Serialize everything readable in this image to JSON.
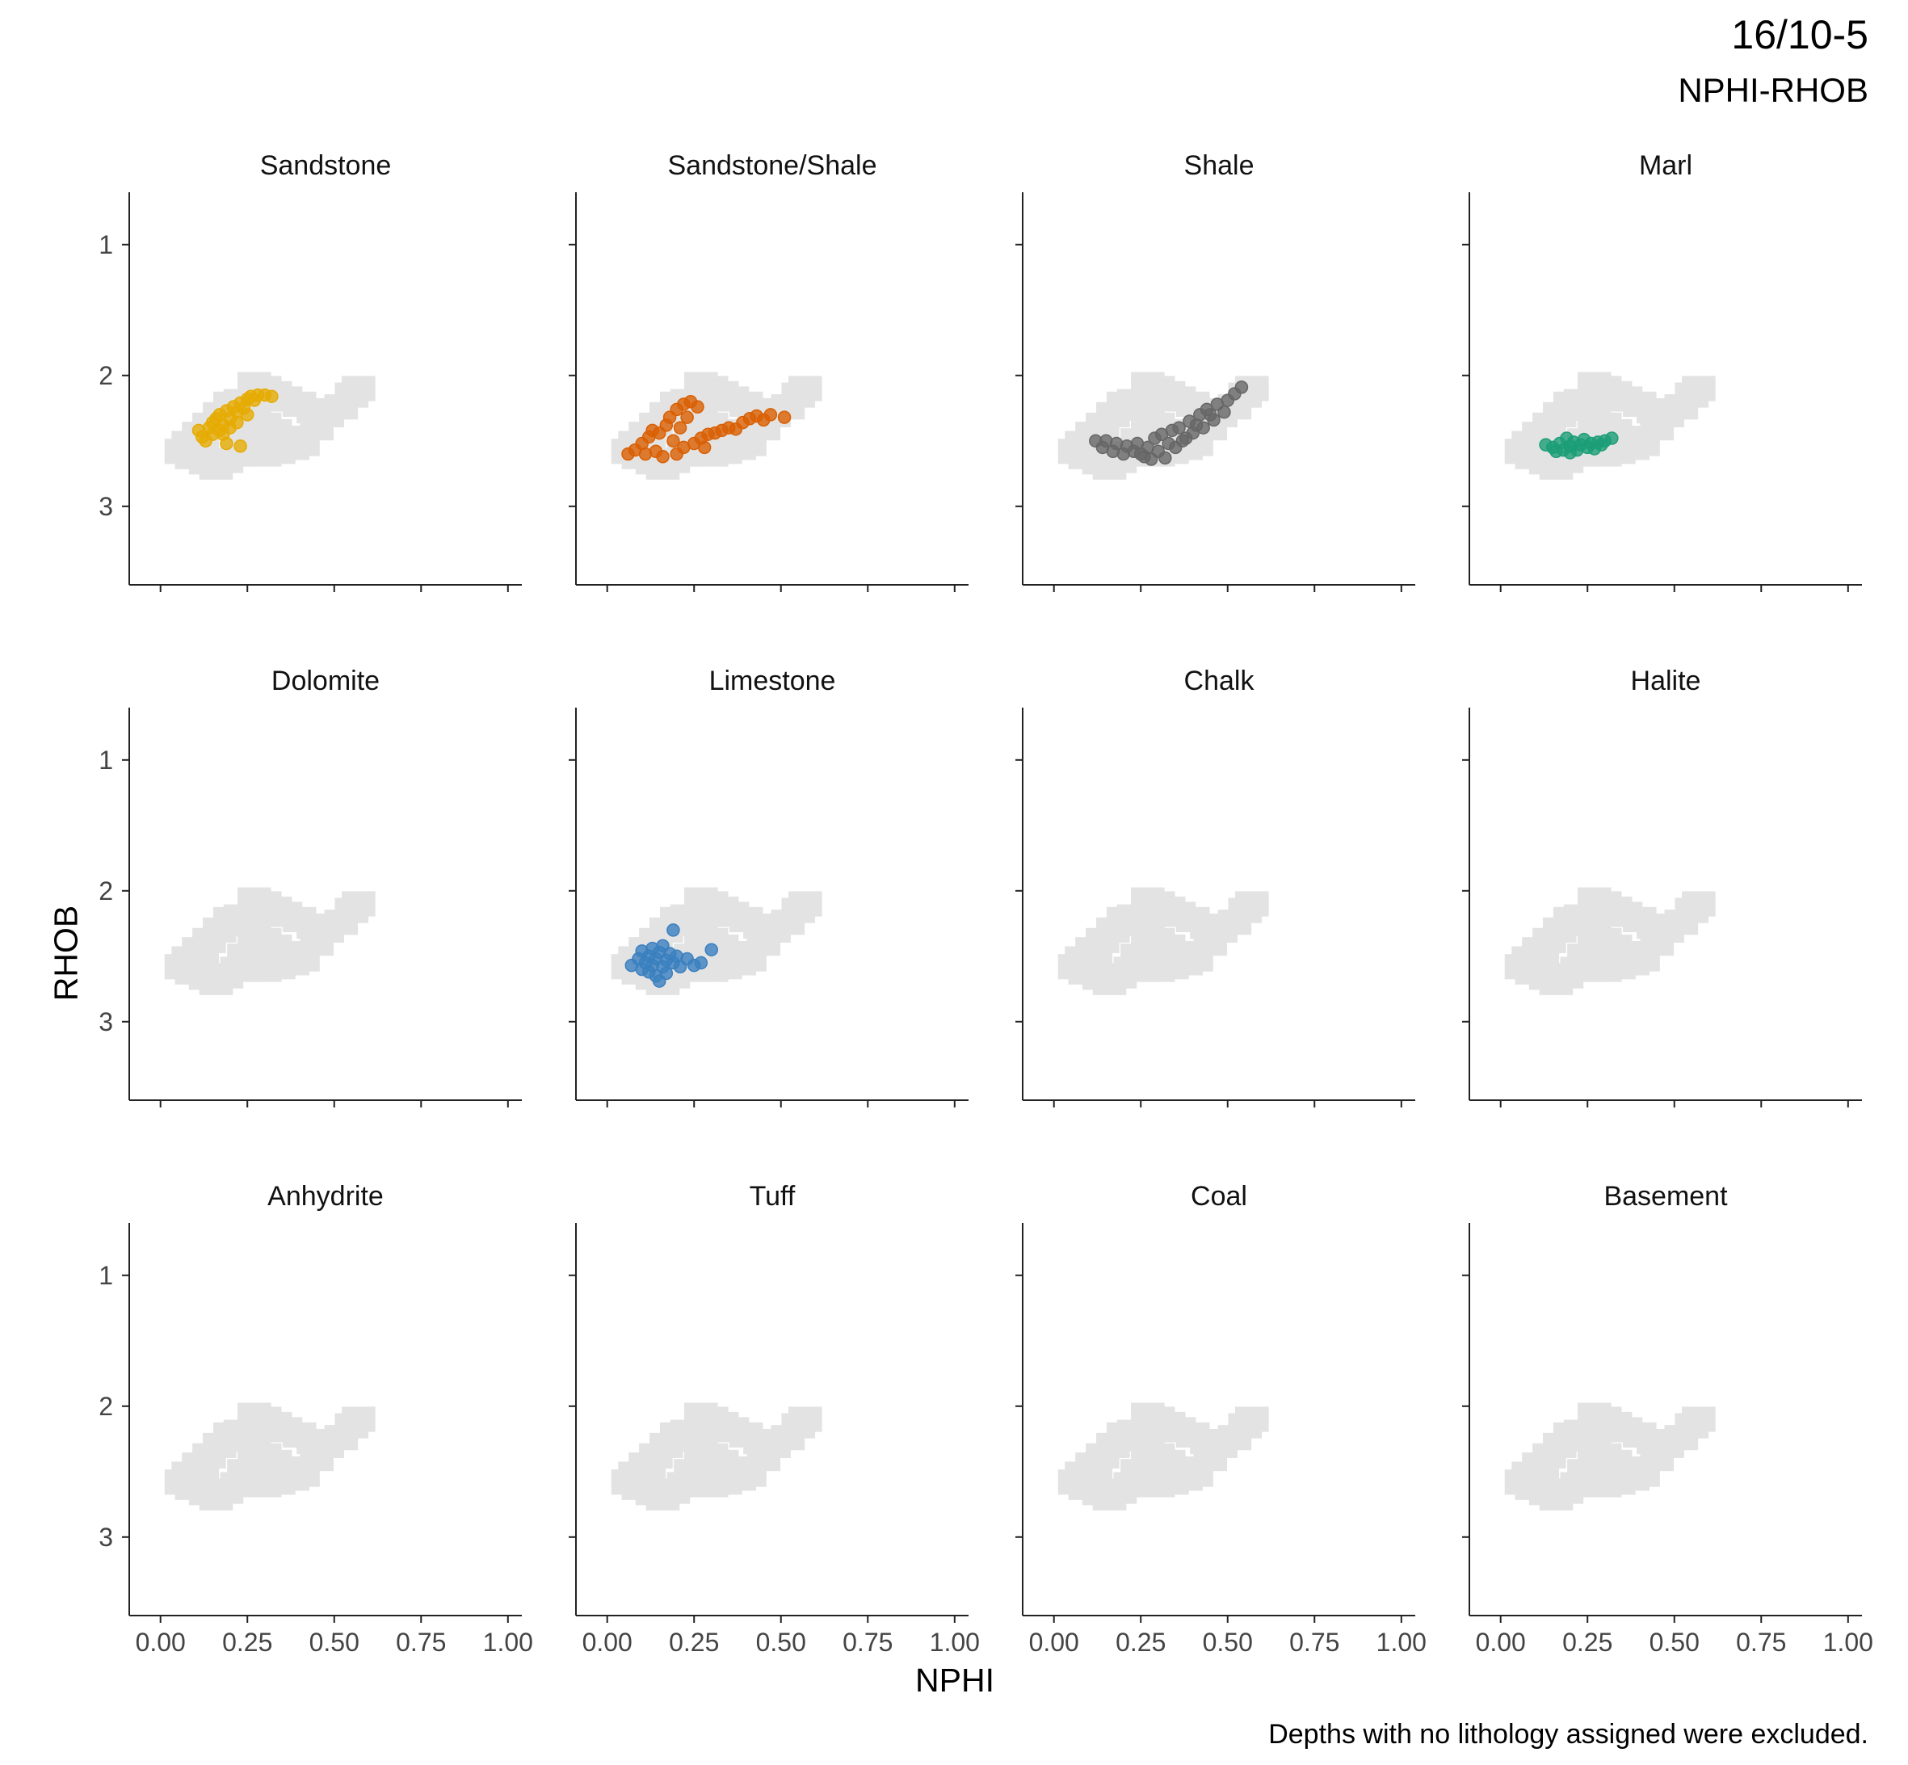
{
  "title": "16/10-5",
  "subtitle": "NPHI-RHOB",
  "caption": "Depths with no lithology assigned were excluded.",
  "chart_data": {
    "type": "scatter",
    "xlabel": "NPHI",
    "ylabel": "RHOB",
    "xlim": [
      -0.09,
      1.04
    ],
    "ylim": [
      3.6,
      0.6
    ],
    "y_reversed": true,
    "x_ticks": [
      "0.00",
      "0.25",
      "0.50",
      "0.75",
      "1.00"
    ],
    "y_ticks": [
      "1",
      "2",
      "3"
    ],
    "grid": false,
    "background_points_color": "#e3e3e3",
    "background_points": [
      {
        "x": 0.27,
        "y": 2.07
      },
      {
        "x": 0.3,
        "y": 2.1
      },
      {
        "x": 0.33,
        "y": 2.14
      },
      {
        "x": 0.36,
        "y": 2.18
      },
      {
        "x": 0.4,
        "y": 2.22
      },
      {
        "x": 0.44,
        "y": 2.27
      },
      {
        "x": 0.48,
        "y": 2.3
      },
      {
        "x": 0.52,
        "y": 2.24
      },
      {
        "x": 0.55,
        "y": 2.15
      },
      {
        "x": 0.57,
        "y": 2.1
      },
      {
        "x": 0.25,
        "y": 2.25
      },
      {
        "x": 0.27,
        "y": 2.32
      },
      {
        "x": 0.3,
        "y": 2.38
      },
      {
        "x": 0.33,
        "y": 2.43
      },
      {
        "x": 0.37,
        "y": 2.48
      },
      {
        "x": 0.41,
        "y": 2.52
      },
      {
        "x": 0.45,
        "y": 2.4
      },
      {
        "x": 0.2,
        "y": 2.22
      },
      {
        "x": 0.23,
        "y": 2.2
      },
      {
        "x": 0.17,
        "y": 2.3
      },
      {
        "x": 0.14,
        "y": 2.38
      },
      {
        "x": 0.11,
        "y": 2.45
      },
      {
        "x": 0.08,
        "y": 2.52
      },
      {
        "x": 0.06,
        "y": 2.58
      },
      {
        "x": 0.09,
        "y": 2.62
      },
      {
        "x": 0.13,
        "y": 2.66
      },
      {
        "x": 0.16,
        "y": 2.7
      },
      {
        "x": 0.19,
        "y": 2.65
      },
      {
        "x": 0.22,
        "y": 2.6
      },
      {
        "x": 0.26,
        "y": 2.58
      },
      {
        "x": 0.3,
        "y": 2.6
      },
      {
        "x": 0.34,
        "y": 2.58
      },
      {
        "x": 0.38,
        "y": 2.55
      },
      {
        "x": 0.28,
        "y": 2.45
      },
      {
        "x": 0.24,
        "y": 2.5
      },
      {
        "x": 0.12,
        "y": 2.56
      }
    ],
    "panels": [
      {
        "name": "Sandstone",
        "color": "#e6ab02",
        "points": [
          {
            "x": 0.11,
            "y": 2.42
          },
          {
            "x": 0.12,
            "y": 2.47
          },
          {
            "x": 0.14,
            "y": 2.4
          },
          {
            "x": 0.13,
            "y": 2.5
          },
          {
            "x": 0.15,
            "y": 2.36
          },
          {
            "x": 0.16,
            "y": 2.33
          },
          {
            "x": 0.15,
            "y": 2.45
          },
          {
            "x": 0.17,
            "y": 2.3
          },
          {
            "x": 0.18,
            "y": 2.38
          },
          {
            "x": 0.17,
            "y": 2.42
          },
          {
            "x": 0.19,
            "y": 2.27
          },
          {
            "x": 0.2,
            "y": 2.33
          },
          {
            "x": 0.21,
            "y": 2.24
          },
          {
            "x": 0.22,
            "y": 2.28
          },
          {
            "x": 0.23,
            "y": 2.21
          },
          {
            "x": 0.24,
            "y": 2.25
          },
          {
            "x": 0.25,
            "y": 2.18
          },
          {
            "x": 0.26,
            "y": 2.16
          },
          {
            "x": 0.27,
            "y": 2.19
          },
          {
            "x": 0.28,
            "y": 2.15
          },
          {
            "x": 0.3,
            "y": 2.15
          },
          {
            "x": 0.32,
            "y": 2.16
          },
          {
            "x": 0.18,
            "y": 2.45
          },
          {
            "x": 0.2,
            "y": 2.4
          },
          {
            "x": 0.22,
            "y": 2.36
          },
          {
            "x": 0.19,
            "y": 2.52
          },
          {
            "x": 0.23,
            "y": 2.54
          },
          {
            "x": 0.25,
            "y": 2.3
          }
        ]
      },
      {
        "name": "Sandstone/Shale",
        "color": "#d95f02",
        "points": [
          {
            "x": 0.06,
            "y": 2.6
          },
          {
            "x": 0.08,
            "y": 2.57
          },
          {
            "x": 0.1,
            "y": 2.52
          },
          {
            "x": 0.12,
            "y": 2.47
          },
          {
            "x": 0.13,
            "y": 2.42
          },
          {
            "x": 0.15,
            "y": 2.44
          },
          {
            "x": 0.14,
            "y": 2.58
          },
          {
            "x": 0.11,
            "y": 2.6
          },
          {
            "x": 0.17,
            "y": 2.38
          },
          {
            "x": 0.18,
            "y": 2.32
          },
          {
            "x": 0.2,
            "y": 2.26
          },
          {
            "x": 0.22,
            "y": 2.22
          },
          {
            "x": 0.24,
            "y": 2.2
          },
          {
            "x": 0.26,
            "y": 2.24
          },
          {
            "x": 0.23,
            "y": 2.32
          },
          {
            "x": 0.21,
            "y": 2.4
          },
          {
            "x": 0.19,
            "y": 2.5
          },
          {
            "x": 0.22,
            "y": 2.55
          },
          {
            "x": 0.25,
            "y": 2.52
          },
          {
            "x": 0.27,
            "y": 2.48
          },
          {
            "x": 0.29,
            "y": 2.45
          },
          {
            "x": 0.31,
            "y": 2.44
          },
          {
            "x": 0.33,
            "y": 2.42
          },
          {
            "x": 0.35,
            "y": 2.4
          },
          {
            "x": 0.37,
            "y": 2.41
          },
          {
            "x": 0.39,
            "y": 2.36
          },
          {
            "x": 0.41,
            "y": 2.33
          },
          {
            "x": 0.43,
            "y": 2.31
          },
          {
            "x": 0.45,
            "y": 2.34
          },
          {
            "x": 0.47,
            "y": 2.3
          },
          {
            "x": 0.51,
            "y": 2.32
          },
          {
            "x": 0.16,
            "y": 2.62
          },
          {
            "x": 0.2,
            "y": 2.6
          },
          {
            "x": 0.28,
            "y": 2.55
          }
        ]
      },
      {
        "name": "Shale",
        "color": "#666666",
        "points": [
          {
            "x": 0.12,
            "y": 2.5
          },
          {
            "x": 0.14,
            "y": 2.55
          },
          {
            "x": 0.15,
            "y": 2.5
          },
          {
            "x": 0.17,
            "y": 2.58
          },
          {
            "x": 0.18,
            "y": 2.52
          },
          {
            "x": 0.2,
            "y": 2.6
          },
          {
            "x": 0.21,
            "y": 2.54
          },
          {
            "x": 0.23,
            "y": 2.58
          },
          {
            "x": 0.24,
            "y": 2.52
          },
          {
            "x": 0.26,
            "y": 2.62
          },
          {
            "x": 0.27,
            "y": 2.55
          },
          {
            "x": 0.29,
            "y": 2.48
          },
          {
            "x": 0.3,
            "y": 2.58
          },
          {
            "x": 0.31,
            "y": 2.45
          },
          {
            "x": 0.33,
            "y": 2.52
          },
          {
            "x": 0.34,
            "y": 2.42
          },
          {
            "x": 0.35,
            "y": 2.55
          },
          {
            "x": 0.36,
            "y": 2.4
          },
          {
            "x": 0.38,
            "y": 2.48
          },
          {
            "x": 0.39,
            "y": 2.35
          },
          {
            "x": 0.4,
            "y": 2.44
          },
          {
            "x": 0.42,
            "y": 2.3
          },
          {
            "x": 0.43,
            "y": 2.4
          },
          {
            "x": 0.44,
            "y": 2.26
          },
          {
            "x": 0.46,
            "y": 2.34
          },
          {
            "x": 0.47,
            "y": 2.22
          },
          {
            "x": 0.49,
            "y": 2.28
          },
          {
            "x": 0.5,
            "y": 2.19
          },
          {
            "x": 0.52,
            "y": 2.14
          },
          {
            "x": 0.54,
            "y": 2.09
          },
          {
            "x": 0.32,
            "y": 2.63
          },
          {
            "x": 0.28,
            "y": 2.64
          },
          {
            "x": 0.25,
            "y": 2.6
          },
          {
            "x": 0.37,
            "y": 2.5
          },
          {
            "x": 0.41,
            "y": 2.38
          },
          {
            "x": 0.45,
            "y": 2.3
          }
        ]
      },
      {
        "name": "Marl",
        "color": "#1b9e77",
        "points": [
          {
            "x": 0.13,
            "y": 2.53
          },
          {
            "x": 0.15,
            "y": 2.55
          },
          {
            "x": 0.17,
            "y": 2.52
          },
          {
            "x": 0.18,
            "y": 2.57
          },
          {
            "x": 0.19,
            "y": 2.48
          },
          {
            "x": 0.2,
            "y": 2.54
          },
          {
            "x": 0.21,
            "y": 2.51
          },
          {
            "x": 0.22,
            "y": 2.57
          },
          {
            "x": 0.23,
            "y": 2.53
          },
          {
            "x": 0.24,
            "y": 2.49
          },
          {
            "x": 0.25,
            "y": 2.55
          },
          {
            "x": 0.26,
            "y": 2.52
          },
          {
            "x": 0.27,
            "y": 2.56
          },
          {
            "x": 0.28,
            "y": 2.51
          },
          {
            "x": 0.29,
            "y": 2.53
          },
          {
            "x": 0.3,
            "y": 2.5
          },
          {
            "x": 0.32,
            "y": 2.48
          },
          {
            "x": 0.16,
            "y": 2.58
          },
          {
            "x": 0.2,
            "y": 2.59
          }
        ]
      },
      {
        "name": "Dolomite",
        "color": "#999999",
        "points": []
      },
      {
        "name": "Limestone",
        "color": "#3a7fbf",
        "points": [
          {
            "x": 0.07,
            "y": 2.57
          },
          {
            "x": 0.09,
            "y": 2.52
          },
          {
            "x": 0.1,
            "y": 2.46
          },
          {
            "x": 0.1,
            "y": 2.6
          },
          {
            "x": 0.11,
            "y": 2.55
          },
          {
            "x": 0.12,
            "y": 2.5
          },
          {
            "x": 0.12,
            "y": 2.62
          },
          {
            "x": 0.13,
            "y": 2.44
          },
          {
            "x": 0.13,
            "y": 2.57
          },
          {
            "x": 0.14,
            "y": 2.52
          },
          {
            "x": 0.14,
            "y": 2.65
          },
          {
            "x": 0.15,
            "y": 2.47
          },
          {
            "x": 0.15,
            "y": 2.69
          },
          {
            "x": 0.16,
            "y": 2.58
          },
          {
            "x": 0.16,
            "y": 2.42
          },
          {
            "x": 0.17,
            "y": 2.53
          },
          {
            "x": 0.17,
            "y": 2.63
          },
          {
            "x": 0.18,
            "y": 2.48
          },
          {
            "x": 0.19,
            "y": 2.3
          },
          {
            "x": 0.19,
            "y": 2.55
          },
          {
            "x": 0.2,
            "y": 2.5
          },
          {
            "x": 0.21,
            "y": 2.58
          },
          {
            "x": 0.23,
            "y": 2.52
          },
          {
            "x": 0.25,
            "y": 2.57
          },
          {
            "x": 0.27,
            "y": 2.55
          },
          {
            "x": 0.3,
            "y": 2.45
          }
        ]
      },
      {
        "name": "Chalk",
        "color": "#999999",
        "points": []
      },
      {
        "name": "Halite",
        "color": "#999999",
        "points": []
      },
      {
        "name": "Anhydrite",
        "color": "#999999",
        "points": []
      },
      {
        "name": "Tuff",
        "color": "#999999",
        "points": []
      },
      {
        "name": "Coal",
        "color": "#999999",
        "points": []
      },
      {
        "name": "Basement",
        "color": "#999999",
        "points": []
      }
    ]
  }
}
